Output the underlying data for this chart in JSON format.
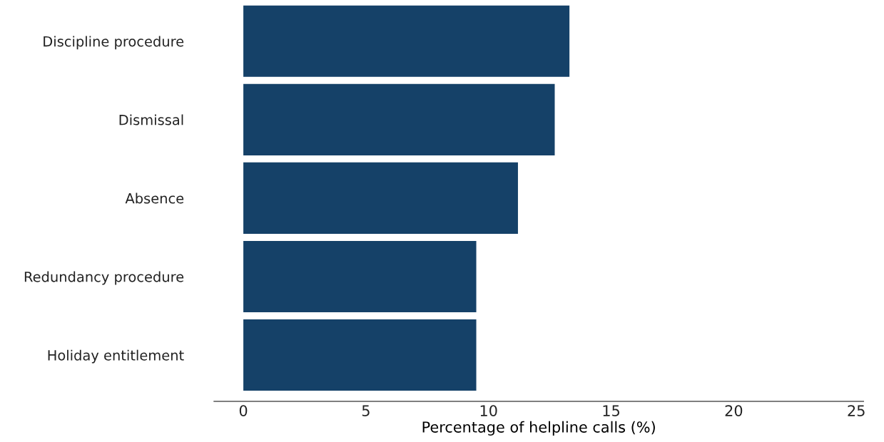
{
  "chart_data": {
    "type": "bar",
    "orientation": "horizontal",
    "xlabel": "Percentage of helpline calls (%)",
    "categories": [
      "Discipline procedure",
      "Dismissal",
      "Absence",
      "Redundancy procedure",
      "Holiday entitlement"
    ],
    "values": [
      13.3,
      12.7,
      11.2,
      9.5,
      9.5
    ],
    "color": "#154168",
    "xlim": [
      -1.2,
      25.3
    ],
    "xticks": [
      0,
      5,
      10,
      15,
      20,
      25
    ],
    "grid": false
  }
}
